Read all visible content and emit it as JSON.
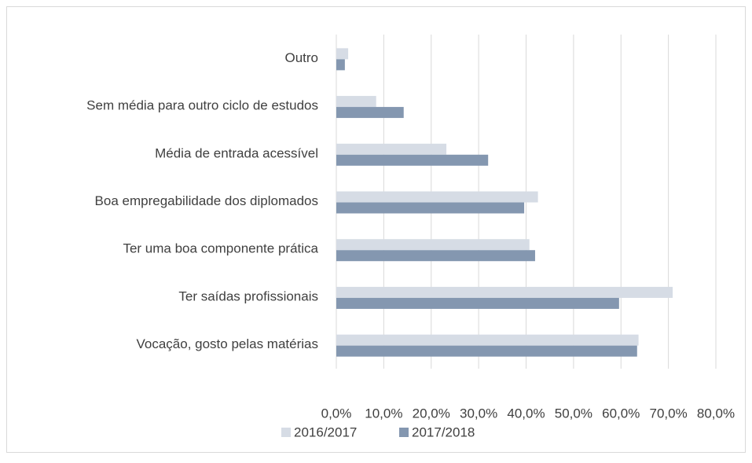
{
  "chart_data": {
    "type": "bar",
    "orientation": "horizontal",
    "categories": [
      "Outro",
      "Sem média para outro ciclo de estudos",
      "Média de entrada acessível",
      "Boa empregabilidade dos diplomados",
      "Ter uma boa componente prática",
      "Ter saídas profissionais",
      "Vocação, gosto pelas matérias"
    ],
    "series": [
      {
        "name": "2016/2017",
        "color": "#d6dce5",
        "values": [
          2.5,
          8.4,
          23.2,
          42.5,
          40.7,
          70.9,
          63.7
        ]
      },
      {
        "name": "2017/2018",
        "color": "#8497b0",
        "values": [
          1.8,
          14.2,
          32.0,
          39.6,
          41.9,
          59.6,
          63.4
        ]
      }
    ],
    "xlim": [
      0,
      80
    ],
    "xticks": [
      {
        "value": 0,
        "label": "0,0%"
      },
      {
        "value": 10,
        "label": "10,0%"
      },
      {
        "value": 20,
        "label": "20,0%"
      },
      {
        "value": 30,
        "label": "30,0%"
      },
      {
        "value": 40,
        "label": "40,0%"
      },
      {
        "value": 50,
        "label": "50,0%"
      },
      {
        "value": 60,
        "label": "60,0%"
      },
      {
        "value": 70,
        "label": "70,0%"
      },
      {
        "value": 80,
        "label": "80,0%"
      }
    ],
    "grid": true,
    "legend": "bottom"
  }
}
